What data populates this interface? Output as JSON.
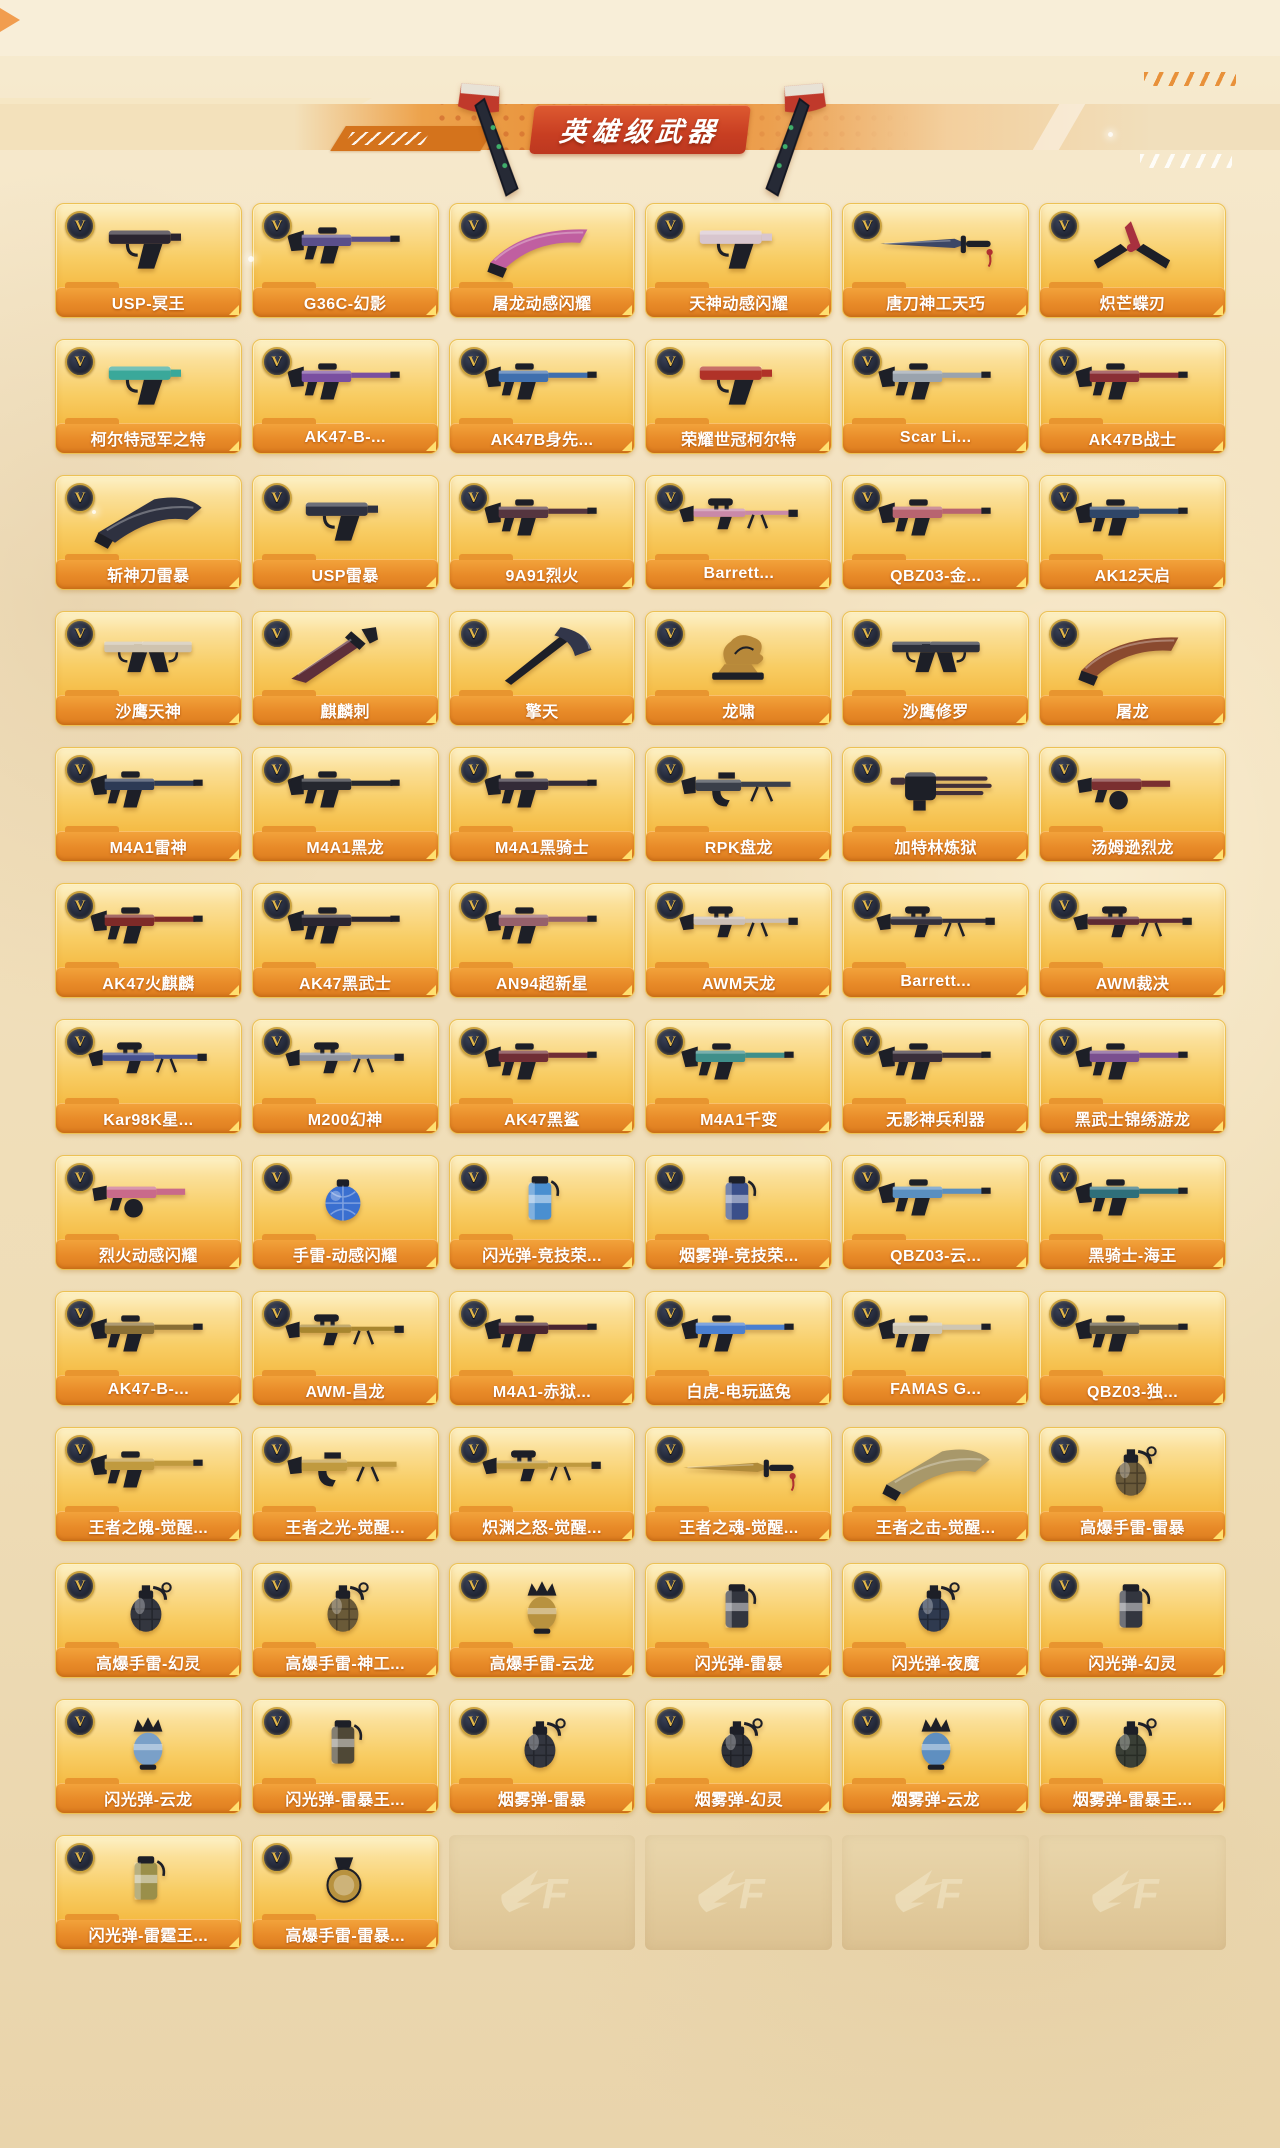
{
  "header": {
    "title": "英雄级武器"
  },
  "badge_letter": "V",
  "watermark_logo": "CF",
  "colors": {
    "card_gold_top": "#fdf2c8",
    "card_gold_bottom": "#f0a930",
    "label_orange": "#e88a28",
    "banner_orange": "#e8913a",
    "title_plate_red": "#c83e22",
    "badge_ring_gold": "#caa23f",
    "badge_navy": "#232838",
    "background_beige": "#f2e0bd"
  },
  "grid": {
    "columns": 6,
    "rows": 13,
    "empty_count": 4,
    "cards": [
      {
        "name": "USP-冥王",
        "icon": "pistol",
        "color": "#2b2530"
      },
      {
        "name": "G36C-幻影",
        "icon": "rifle",
        "color": "#5a4f8a"
      },
      {
        "name": "屠龙动感闪耀",
        "icon": "knife",
        "color": "#c05fa0"
      },
      {
        "name": "天神动感闪耀",
        "icon": "pistol",
        "color": "#d8c6ce"
      },
      {
        "name": "唐刀神工天巧",
        "icon": "sword",
        "color": "#3c4766"
      },
      {
        "name": "炽芒蝶刃",
        "icon": "butterfly",
        "color": "#a8303f"
      },
      {
        "name": "柯尔特冠军之特",
        "icon": "pistol",
        "color": "#3aa89a"
      },
      {
        "name": "AK47-B-...",
        "icon": "rifle",
        "color": "#7a4fa0"
      },
      {
        "name": "AK47B身先...",
        "icon": "rifle",
        "color": "#3f6fae"
      },
      {
        "name": "荣耀世冠柯尔特",
        "icon": "pistol",
        "color": "#b03228"
      },
      {
        "name": "Scar Li...",
        "icon": "rifle",
        "color": "#9aa3ad"
      },
      {
        "name": "AK47B战士",
        "icon": "rifle",
        "color": "#8a2f35"
      },
      {
        "name": "斩神刀雷暴",
        "icon": "greatblade",
        "color": "#2e3140"
      },
      {
        "name": "USP雷暴",
        "icon": "pistol",
        "color": "#2e3140"
      },
      {
        "name": "9A91烈火",
        "icon": "rifle",
        "color": "#55353f"
      },
      {
        "name": "Barrett...",
        "icon": "sniper",
        "color": "#c989a8"
      },
      {
        "name": "QBZ03-金...",
        "icon": "rifle",
        "color": "#b86470"
      },
      {
        "name": "AK12天启",
        "icon": "rifle",
        "color": "#2f4668"
      },
      {
        "name": "沙鹰天神",
        "icon": "dual",
        "color": "#cfc3ae"
      },
      {
        "name": "麒麟刺",
        "icon": "dagger",
        "color": "#5e2f3a"
      },
      {
        "name": "擎天",
        "icon": "axe",
        "color": "#32364a"
      },
      {
        "name": "龙啸",
        "icon": "statue",
        "color": "#b8893a"
      },
      {
        "name": "沙鹰修罗",
        "icon": "dual",
        "color": "#2c2f3a"
      },
      {
        "name": "屠龙",
        "icon": "knife",
        "color": "#8a4a2f"
      },
      {
        "name": "M4A1雷神",
        "icon": "rifle",
        "color": "#2d3a55"
      },
      {
        "name": "M4A1黑龙",
        "icon": "rifle",
        "color": "#26282f"
      },
      {
        "name": "M4A1黑骑士",
        "icon": "rifle",
        "color": "#332b38"
      },
      {
        "name": "RPK盘龙",
        "icon": "mg",
        "color": "#3a3f4a"
      },
      {
        "name": "加特林炼狱",
        "icon": "gatling",
        "color": "#402f38"
      },
      {
        "name": "汤姆逊烈龙",
        "icon": "smg",
        "color": "#7a2f30"
      },
      {
        "name": "AK47火麒麟",
        "icon": "rifle",
        "color": "#7e2a28"
      },
      {
        "name": "AK47黑武士",
        "icon": "rifle",
        "color": "#2a2530"
      },
      {
        "name": "AN94超新星",
        "icon": "rifle",
        "color": "#96616b"
      },
      {
        "name": "AWM天龙",
        "icon": "sniper",
        "color": "#cbbfb6"
      },
      {
        "name": "Barrett...",
        "icon": "sniper",
        "color": "#33303c"
      },
      {
        "name": "AWM裁决",
        "icon": "sniper",
        "color": "#5e2a33"
      },
      {
        "name": "Kar98K星...",
        "icon": "sniper",
        "color": "#46518f"
      },
      {
        "name": "M200幻神",
        "icon": "sniper",
        "color": "#8f939e"
      },
      {
        "name": "AK47黑鲨",
        "icon": "rifle",
        "color": "#702d35"
      },
      {
        "name": "M4A1千变",
        "icon": "rifle",
        "color": "#3f8f8a"
      },
      {
        "name": "无影神兵利器",
        "icon": "rifle",
        "color": "#3a2f3a"
      },
      {
        "name": "黑武士锦绣游龙",
        "icon": "rifle",
        "color": "#7a4f8f"
      },
      {
        "name": "烈火动感闪耀",
        "icon": "smg",
        "color": "#c96a8a"
      },
      {
        "name": "手雷-动感闪耀",
        "icon": "sphere",
        "color": "#3a6fd0"
      },
      {
        "name": "闪光弹-竞技荣...",
        "icon": "cylinder",
        "color": "#4a8fd0"
      },
      {
        "name": "烟雾弹-竞技荣...",
        "icon": "cylinder",
        "color": "#3a4f8a"
      },
      {
        "name": "QBZ03-云...",
        "icon": "rifle",
        "color": "#5a8fc0"
      },
      {
        "name": "黑骑士-海王",
        "icon": "rifle",
        "color": "#2f6f7a"
      },
      {
        "name": "AK47-B-...",
        "icon": "rifle",
        "color": "#8a6f35"
      },
      {
        "name": "AWM-昌龙",
        "icon": "sniper",
        "color": "#a8862f"
      },
      {
        "name": "M4A1-赤狱...",
        "icon": "rifle",
        "color": "#4a2530"
      },
      {
        "name": "白虎-电玩蓝兔",
        "icon": "rifle",
        "color": "#4a7fd0"
      },
      {
        "name": "FAMAS G...",
        "icon": "rifle",
        "color": "#cfc6b2"
      },
      {
        "name": "QBZ03-独...",
        "icon": "rifle",
        "color": "#5f5540"
      },
      {
        "name": "王者之魄-觉醒...",
        "icon": "rifle",
        "color": "#c09a3f"
      },
      {
        "name": "王者之光-觉醒...",
        "icon": "mg",
        "color": "#c09a3f"
      },
      {
        "name": "炽渊之怒-觉醒...",
        "icon": "sniper",
        "color": "#c09a3f"
      },
      {
        "name": "王者之魂-觉醒...",
        "icon": "sword",
        "color": "#b08a3a"
      },
      {
        "name": "王者之击-觉醒...",
        "icon": "greatblade",
        "color": "#a8986a"
      },
      {
        "name": "高爆手雷-雷暴",
        "icon": "grenade",
        "color": "#6a5a3a"
      },
      {
        "name": "高爆手雷-幻灵",
        "icon": "grenade",
        "color": "#33363f"
      },
      {
        "name": "高爆手雷-神工...",
        "icon": "grenade",
        "color": "#6a5a38"
      },
      {
        "name": "高爆手雷-云龙",
        "icon": "ornate",
        "color": "#b8923f"
      },
      {
        "name": "闪光弹-雷暴",
        "icon": "cylinder",
        "color": "#33363f"
      },
      {
        "name": "闪光弹-夜魔",
        "icon": "grenade",
        "color": "#2f3a4f"
      },
      {
        "name": "闪光弹-幻灵",
        "icon": "cylinder",
        "color": "#33363f"
      },
      {
        "name": "闪光弹-云龙",
        "icon": "ornate",
        "color": "#7aa0c8"
      },
      {
        "name": "闪光弹-雷暴王...",
        "icon": "cylinder",
        "color": "#4f4836"
      },
      {
        "name": "烟雾弹-雷暴",
        "icon": "grenade",
        "color": "#33363f"
      },
      {
        "name": "烟雾弹-幻灵",
        "icon": "grenade",
        "color": "#2d3038"
      },
      {
        "name": "烟雾弹-云龙",
        "icon": "ornate",
        "color": "#5f8fc0"
      },
      {
        "name": "烟雾弹-雷暴王...",
        "icon": "grenade",
        "color": "#3a3f36"
      },
      {
        "name": "闪光弹-雷霆王...",
        "icon": "cylinder",
        "color": "#9a8f4a"
      },
      {
        "name": "高爆手雷-雷暴...",
        "icon": "medal",
        "color": "#b8923f"
      }
    ]
  }
}
